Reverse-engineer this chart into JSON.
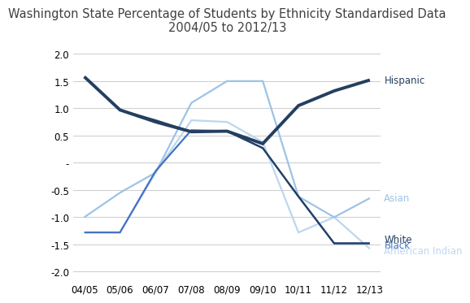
{
  "title": "Washington State Percentage of Students by Ethnicity Standardised Data\n2004/05 to 2012/13",
  "x_labels": [
    "04/05",
    "05/06",
    "06/07",
    "07/08",
    "08/09",
    "09/10",
    "10/11",
    "11/12",
    "12/13"
  ],
  "series": {
    "Hispanic": {
      "values": [
        1.58,
        0.97,
        0.75,
        0.57,
        0.58,
        0.35,
        1.05,
        1.32,
        1.52
      ],
      "color": "#243F60",
      "linewidth": 2.8,
      "zorder": 5
    },
    "White": {
      "values": [
        1.58,
        0.97,
        0.78,
        0.57,
        0.58,
        0.27,
        -0.62,
        -1.48,
        -1.48
      ],
      "color": "#243F60",
      "linewidth": 1.6,
      "zorder": 4
    },
    "Black": {
      "values": [
        -1.28,
        -1.28,
        -0.15,
        0.6,
        0.58,
        0.27,
        -0.62,
        -1.48,
        -1.48
      ],
      "color": "#4472C4",
      "linewidth": 1.6,
      "zorder": 3
    },
    "Asian": {
      "values": [
        -1.0,
        -0.55,
        -0.18,
        1.1,
        1.5,
        1.5,
        -0.62,
        -1.0,
        -0.65
      ],
      "color": "#9DC3E6",
      "linewidth": 1.6,
      "zorder": 2
    },
    "American Indian": {
      "values": [
        -1.28,
        -1.28,
        -0.18,
        0.78,
        0.75,
        0.38,
        -1.28,
        -1.0,
        -1.58
      ],
      "color": "#BDD7EE",
      "linewidth": 1.6,
      "zorder": 1
    }
  },
  "ylim": [
    -2.15,
    2.25
  ],
  "yticks": [
    -2.0,
    -1.5,
    -1.0,
    -0.5,
    0.0,
    0.5,
    1.0,
    1.5,
    2.0
  ],
  "ytick_labels": [
    "-2.0",
    "-1.5",
    "-1.0",
    "-0.5",
    "-",
    "0.5",
    "1.0",
    "1.5",
    "2.0"
  ],
  "right_labels": [
    {
      "text": "Hispanic",
      "y": 1.52,
      "color": "#243F60"
    },
    {
      "text": "Asian",
      "y": -0.65,
      "color": "#9DC3E6"
    },
    {
      "text": "White",
      "y": -1.4,
      "color": "#243F60"
    },
    {
      "text": "Black",
      "y": -1.51,
      "color": "#4472C4"
    },
    {
      "text": "American Indian",
      "y": -1.62,
      "color": "#BDD7EE"
    }
  ],
  "background_color": "#FFFFFF",
  "grid_color": "#D0D0D0",
  "title_fontsize": 10.5,
  "label_fontsize": 8.5,
  "legend_fontsize": 8.5
}
